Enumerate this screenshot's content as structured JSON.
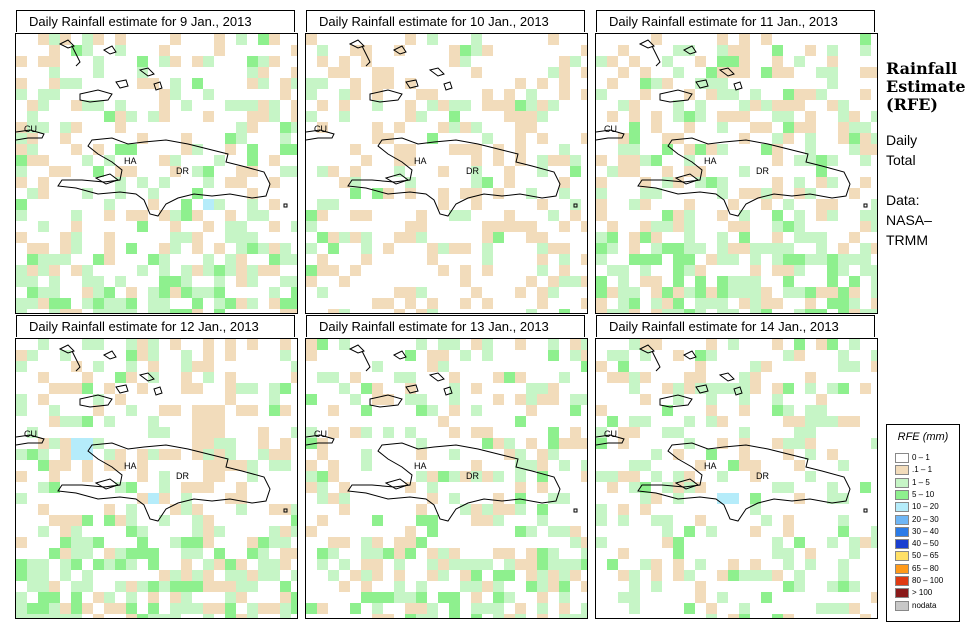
{
  "panels": [
    {
      "title": "Daily Rainfall estimate for  9 Jan., 2013"
    },
    {
      "title": "Daily Rainfall estimate for  10 Jan., 2013"
    },
    {
      "title": "Daily Rainfall estimate for  11 Jan., 2013"
    },
    {
      "title": "Daily Rainfall estimate for  12 Jan., 2013"
    },
    {
      "title": "Daily Rainfall estimate for  13 Jan., 2013"
    },
    {
      "title": "Daily Rainfall estimate for  14 Jan., 2013"
    }
  ],
  "map_labels": {
    "cuba": "CU",
    "haiti": "HA",
    "dr": "DR"
  },
  "side": {
    "title_line1": "Rainfall",
    "title_line2": "Estimate",
    "title_line3": "(RFE)",
    "daily_line1": "Daily",
    "daily_line2": "Total",
    "data_line1": "Data:",
    "data_line2": "NASA–",
    "data_line3": "TRMM"
  },
  "legend": {
    "title": "RFE (mm)",
    "items": [
      {
        "label": "0 – 1",
        "color": "#ffffff"
      },
      {
        "label": ".1 – 1",
        "color": "#f2dcbb"
      },
      {
        "label": "1 – 5",
        "color": "#c6f5c6"
      },
      {
        "label": "5 – 10",
        "color": "#8ef08e"
      },
      {
        "label": "10 – 20",
        "color": "#b5ecfa"
      },
      {
        "label": "20 – 30",
        "color": "#6fb6f5"
      },
      {
        "label": "30 – 40",
        "color": "#2b7be8"
      },
      {
        "label": "40 – 50",
        "color": "#1a3fd0"
      },
      {
        "label": "50 – 65",
        "color": "#ffe066"
      },
      {
        "label": "65 – 80",
        "color": "#ff9a1a"
      },
      {
        "label": "80 – 100",
        "color": "#e03a12"
      },
      {
        "label": "> 100",
        "color": "#8a1a1a"
      },
      {
        "label": "nodata",
        "color": "#c8c8c8"
      }
    ]
  },
  "colors": {
    "tan": "#f2dcbb",
    "light_green": "#c6f5c6",
    "green": "#8ef08e",
    "light_blue": "#b5ecfa"
  }
}
